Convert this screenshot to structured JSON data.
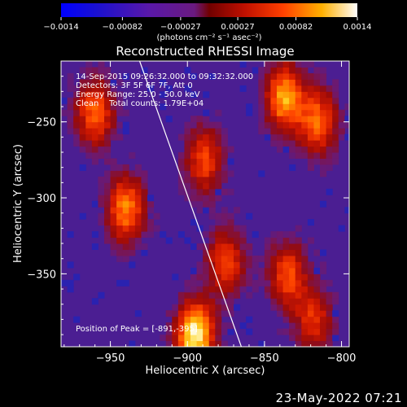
{
  "colorbar": {
    "ticks": [
      "-0.0014",
      "-0.00082",
      "-0.00027",
      "0.00027",
      "0.00082",
      "0.0014"
    ],
    "tick_values": [
      -0.0014,
      -0.00082,
      -0.00027,
      0.00027,
      0.00082,
      0.0014
    ],
    "range": [
      -0.0014,
      0.0014
    ],
    "units_line": "(photons cm⁻² s⁻¹ asec⁻²)"
  },
  "annotations": {
    "time_range": "14-Sep-2015 09:26:32.000 to 09:32:32.000",
    "detectors": "Detectors: 3F 5F 6F 7F, Att 0",
    "energy": "Energy Range: 25.0 - 50.0 keV",
    "clean": "Clean    Total counts: 1.79E+04",
    "peak": "Position of Peak = [-891,-395]"
  },
  "footer": {
    "date": "23-May-2022 07:21"
  },
  "chart_data": {
    "type": "heatmap",
    "title": "Reconstructed RHESSI Image",
    "xlabel": "Heliocentric X (arcsec)",
    "ylabel": "Heliocentric Y (arcsec)",
    "xlim": [
      -982,
      -795
    ],
    "ylim": [
      -398,
      -210
    ],
    "xticks": [
      -950,
      -900,
      -850,
      -800
    ],
    "yticks": [
      -250,
      -300,
      -350
    ],
    "xtick_labels": [
      "−950",
      "−900",
      "−850",
      "−800"
    ],
    "ytick_labels": [
      "−250",
      "−300",
      "−350"
    ],
    "colormap": "blue-purple-red-yellow-white",
    "limb_line": {
      "x": [
        -931,
        -865
      ],
      "y": [
        -210,
        -398
      ]
    },
    "bright_features": [
      {
        "x": -960,
        "y": -244,
        "level": 0.0009
      },
      {
        "x": -940,
        "y": -307,
        "level": 0.001
      },
      {
        "x": -889,
        "y": -275,
        "level": 0.0008
      },
      {
        "x": -875,
        "y": -342,
        "level": 0.0008
      },
      {
        "x": -895,
        "y": -390,
        "level": 0.0014
      },
      {
        "x": -837,
        "y": -234,
        "level": 0.0011
      },
      {
        "x": -815,
        "y": -250,
        "level": 0.0009
      },
      {
        "x": -835,
        "y": -350,
        "level": 0.0008
      },
      {
        "x": -818,
        "y": -380,
        "level": 0.0007
      }
    ]
  }
}
